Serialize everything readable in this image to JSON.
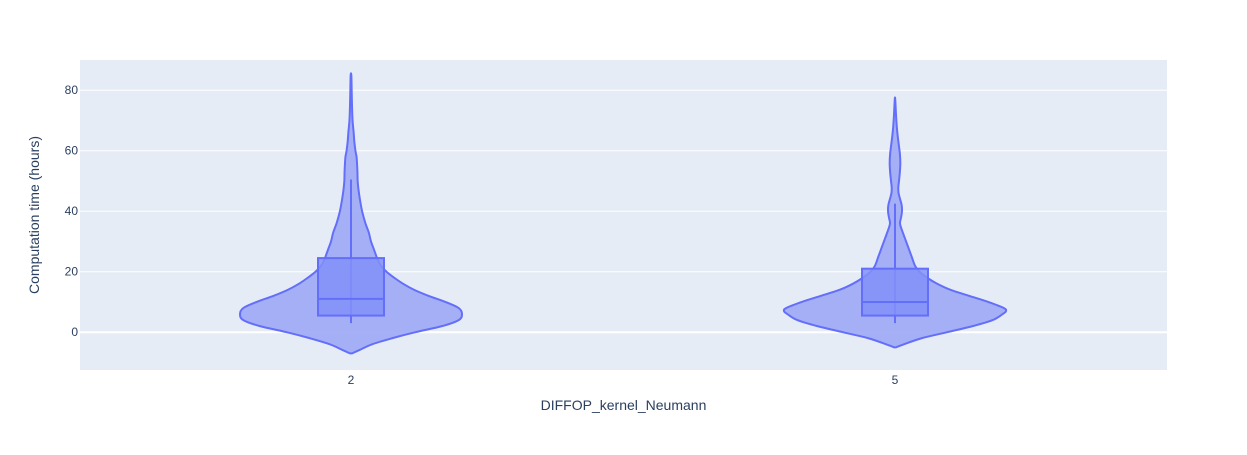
{
  "chart_data": {
    "type": "violin",
    "xlabel": "DIFFOP_kernel_Neumann",
    "ylabel": "Computation time (hours)",
    "categories": [
      "2",
      "5"
    ],
    "yticks": [
      0,
      20,
      40,
      60,
      80
    ],
    "ylim": [
      -12.5,
      90
    ],
    "grid": true,
    "legend": "none",
    "colors": {
      "plot_bg": "#e5ecf6",
      "grid": "#ffffff",
      "violin_fill": "#a1acf4",
      "violin_line": "#636efa",
      "box_fill": "#8390f8",
      "text": "#2a3f5f"
    },
    "violins": [
      {
        "category": "2",
        "box": {
          "q1": 5.5,
          "median": 11,
          "q3": 24.5,
          "whisker_low": 3,
          "whisker_high": 50.5
        },
        "range": [
          -7,
          85
        ],
        "density": [
          [
            -7,
            0.01
          ],
          [
            -6,
            0.07
          ],
          [
            -4,
            0.19
          ],
          [
            -2,
            0.37
          ],
          [
            0,
            0.58
          ],
          [
            2,
            0.82
          ],
          [
            4,
            0.97
          ],
          [
            6,
            1.0
          ],
          [
            8,
            0.97
          ],
          [
            10,
            0.85
          ],
          [
            12,
            0.7
          ],
          [
            14,
            0.57
          ],
          [
            16,
            0.47
          ],
          [
            18,
            0.39
          ],
          [
            20,
            0.32
          ],
          [
            22,
            0.27
          ],
          [
            24,
            0.24
          ],
          [
            26,
            0.22
          ],
          [
            28,
            0.2
          ],
          [
            30,
            0.18
          ],
          [
            33,
            0.16
          ],
          [
            36,
            0.13
          ],
          [
            40,
            0.1
          ],
          [
            44,
            0.08
          ],
          [
            47,
            0.068
          ],
          [
            50,
            0.06
          ],
          [
            53,
            0.058
          ],
          [
            56,
            0.054
          ],
          [
            58,
            0.05
          ],
          [
            60,
            0.04
          ],
          [
            63,
            0.03
          ],
          [
            66,
            0.024
          ],
          [
            70,
            0.014
          ],
          [
            75,
            0.009
          ],
          [
            80,
            0.006
          ],
          [
            85,
            0.003
          ]
        ]
      },
      {
        "category": "5",
        "box": {
          "q1": 5.5,
          "median": 10,
          "q3": 21,
          "whisker_low": 3,
          "whisker_high": 42.5
        },
        "range": [
          -5,
          77
        ],
        "density": [
          [
            -5,
            0.01
          ],
          [
            -4,
            0.08
          ],
          [
            -2,
            0.24
          ],
          [
            0,
            0.47
          ],
          [
            2,
            0.7
          ],
          [
            4,
            0.88
          ],
          [
            6,
            0.97
          ],
          [
            7,
            1.0
          ],
          [
            8,
            0.98
          ],
          [
            10,
            0.84
          ],
          [
            12,
            0.67
          ],
          [
            14,
            0.5
          ],
          [
            16,
            0.38
          ],
          [
            18,
            0.29
          ],
          [
            20,
            0.22
          ],
          [
            22,
            0.18
          ],
          [
            25,
            0.15
          ],
          [
            28,
            0.12
          ],
          [
            31,
            0.09
          ],
          [
            34,
            0.06
          ],
          [
            36,
            0.045
          ],
          [
            38,
            0.055
          ],
          [
            40,
            0.063
          ],
          [
            42,
            0.06
          ],
          [
            44,
            0.046
          ],
          [
            46,
            0.032
          ],
          [
            48,
            0.03
          ],
          [
            50,
            0.036
          ],
          [
            53,
            0.044
          ],
          [
            56,
            0.048
          ],
          [
            59,
            0.044
          ],
          [
            62,
            0.034
          ],
          [
            65,
            0.024
          ],
          [
            68,
            0.016
          ],
          [
            72,
            0.009
          ],
          [
            77,
            0.002
          ]
        ]
      }
    ]
  }
}
